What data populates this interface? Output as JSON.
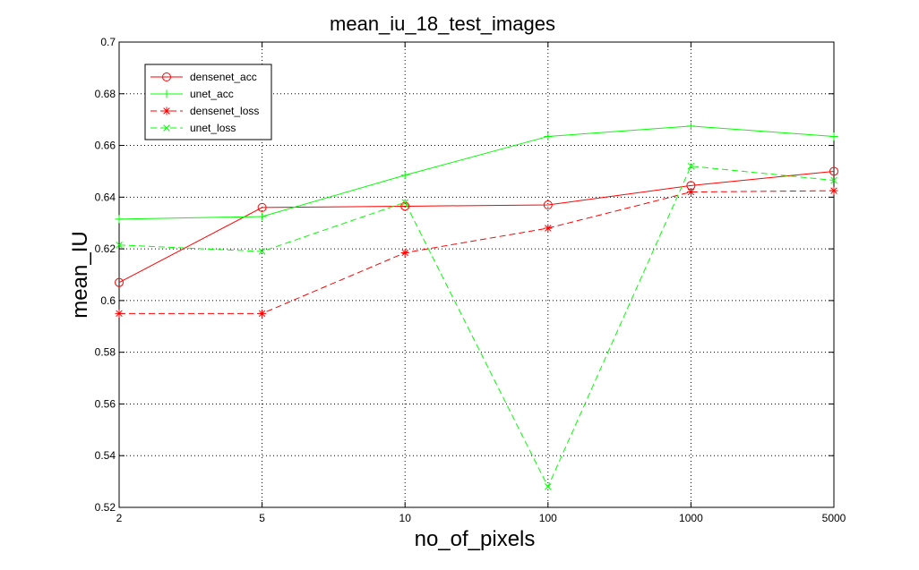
{
  "chart_data": {
    "type": "line",
    "title": "mean_iu_18_test_images",
    "xlabel": "no_of_pixels",
    "ylabel": "mean_IU",
    "categories": [
      "2",
      "5",
      "10",
      "100",
      "1000",
      "5000"
    ],
    "ylim": [
      0.52,
      0.7
    ],
    "yticks": [
      "0.52",
      "0.54",
      "0.56",
      "0.58",
      "0.6",
      "0.62",
      "0.64",
      "0.66",
      "0.68",
      "0.7"
    ],
    "grid": true,
    "legend_position": "top-left",
    "series": [
      {
        "name": "densenet_acc",
        "color": "#ff0000",
        "line_style": "solid",
        "marker": "circle",
        "values": [
          0.607,
          0.636,
          0.6365,
          0.637,
          0.6445,
          0.65
        ]
      },
      {
        "name": "unet_acc",
        "color": "#00ff00",
        "line_style": "solid",
        "marker": "plus",
        "values": [
          0.6315,
          0.6325,
          0.6485,
          0.6635,
          0.6675,
          0.6635
        ]
      },
      {
        "name": "densenet_loss",
        "color": "#ff0000",
        "line_style": "dashed",
        "marker": "asterisk",
        "values": [
          0.595,
          0.595,
          0.6185,
          0.628,
          0.642,
          0.6425
        ]
      },
      {
        "name": "unet_loss",
        "color": "#00ff00",
        "line_style": "dashed",
        "marker": "x",
        "values": [
          0.6215,
          0.619,
          0.638,
          0.528,
          0.652,
          0.6465
        ]
      }
    ]
  }
}
